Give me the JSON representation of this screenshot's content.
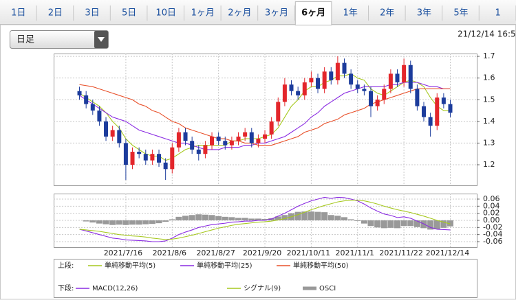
{
  "tabs": [
    {
      "label": "1日"
    },
    {
      "label": "2日"
    },
    {
      "label": "3日"
    },
    {
      "label": "5日"
    },
    {
      "label": "10日"
    },
    {
      "label": "1ヶ月"
    },
    {
      "label": "2ヶ月"
    },
    {
      "label": "3ヶ月"
    },
    {
      "label": "6ヶ月",
      "active": true
    },
    {
      "label": "1年"
    },
    {
      "label": "2年"
    },
    {
      "label": "3年"
    },
    {
      "label": "5年"
    },
    {
      "label": "1"
    }
  ],
  "dropdown": "日足",
  "timestamp": "21/12/14 16:5",
  "chart_data": [
    {
      "type": "candlestick",
      "legend_label": "上段:",
      "up_color": "#e3262b",
      "down_color": "#1c3c9c",
      "grid": true,
      "xlim": [
        -3.9,
        60
      ],
      "xticks": [
        7,
        14,
        21,
        28,
        35,
        42,
        49,
        56
      ],
      "ylim": [
        1.105,
        1.713
      ],
      "yticks": [
        1.2,
        1.3,
        1.4,
        1.5,
        1.6,
        1.7
      ],
      "open": [
        1.54,
        1.52,
        1.48,
        1.45,
        1.4,
        1.33,
        1.36,
        1.3,
        1.2,
        1.26,
        1.25,
        1.22,
        1.25,
        1.21,
        1.18,
        1.28,
        1.35,
        1.31,
        1.27,
        1.25,
        1.29,
        1.33,
        1.31,
        1.29,
        1.31,
        1.33,
        1.35,
        1.3,
        1.32,
        1.34,
        1.4,
        1.49,
        1.57,
        1.54,
        1.52,
        1.58,
        1.6,
        1.55,
        1.63,
        1.59,
        1.67,
        1.62,
        1.57,
        1.55,
        1.54,
        1.47,
        1.5,
        1.55,
        1.62,
        1.58,
        1.66,
        1.55,
        1.47,
        1.42,
        1.38,
        1.51,
        1.48
      ],
      "high": [
        1.56,
        1.54,
        1.5,
        1.47,
        1.42,
        1.38,
        1.38,
        1.32,
        1.28,
        1.28,
        1.27,
        1.27,
        1.27,
        1.23,
        1.3,
        1.37,
        1.37,
        1.33,
        1.29,
        1.31,
        1.35,
        1.35,
        1.33,
        1.33,
        1.35,
        1.37,
        1.37,
        1.34,
        1.36,
        1.42,
        1.51,
        1.6,
        1.59,
        1.56,
        1.6,
        1.63,
        1.62,
        1.65,
        1.65,
        1.7,
        1.69,
        1.64,
        1.59,
        1.57,
        1.56,
        1.52,
        1.57,
        1.64,
        1.64,
        1.69,
        1.68,
        1.57,
        1.49,
        1.44,
        1.53,
        1.53,
        1.5
      ],
      "low": [
        1.5,
        1.46,
        1.43,
        1.38,
        1.31,
        1.31,
        1.28,
        1.13,
        1.18,
        1.23,
        1.2,
        1.2,
        1.19,
        1.13,
        1.16,
        1.26,
        1.29,
        1.25,
        1.22,
        1.23,
        1.27,
        1.29,
        1.27,
        1.27,
        1.29,
        1.31,
        1.28,
        1.28,
        1.3,
        1.32,
        1.38,
        1.47,
        1.52,
        1.5,
        1.5,
        1.56,
        1.53,
        1.53,
        1.57,
        1.57,
        1.6,
        1.55,
        1.53,
        1.52,
        1.42,
        1.45,
        1.48,
        1.53,
        1.56,
        1.56,
        1.53,
        1.45,
        1.4,
        1.33,
        1.36,
        1.46,
        1.42
      ],
      "close": [
        1.52,
        1.48,
        1.45,
        1.4,
        1.33,
        1.36,
        1.3,
        1.2,
        1.26,
        1.25,
        1.22,
        1.25,
        1.21,
        1.18,
        1.28,
        1.35,
        1.31,
        1.27,
        1.25,
        1.29,
        1.33,
        1.31,
        1.29,
        1.31,
        1.33,
        1.35,
        1.3,
        1.32,
        1.34,
        1.4,
        1.49,
        1.57,
        1.54,
        1.52,
        1.58,
        1.6,
        1.55,
        1.63,
        1.59,
        1.67,
        1.62,
        1.57,
        1.55,
        1.54,
        1.47,
        1.5,
        1.55,
        1.62,
        1.58,
        1.66,
        1.55,
        1.47,
        1.42,
        1.38,
        1.51,
        1.48,
        1.44
      ],
      "series": [
        {
          "name": "単純移動平均(5)",
          "color": "#a6c81e",
          "values": [
            1.53,
            1.51,
            1.49,
            1.47,
            1.44,
            1.4,
            1.37,
            1.32,
            1.29,
            1.27,
            1.25,
            1.24,
            1.24,
            1.22,
            1.23,
            1.25,
            1.27,
            1.28,
            1.29,
            1.29,
            1.29,
            1.29,
            1.29,
            1.31,
            1.31,
            1.32,
            1.32,
            1.32,
            1.33,
            1.34,
            1.37,
            1.42,
            1.47,
            1.5,
            1.54,
            1.56,
            1.56,
            1.58,
            1.59,
            1.61,
            1.61,
            1.62,
            1.6,
            1.59,
            1.55,
            1.53,
            1.52,
            1.54,
            1.56,
            1.58,
            1.59,
            1.58,
            1.56,
            1.51,
            1.47,
            1.45,
            1.45
          ]
        },
        {
          "name": "単純移動平均(25)",
          "color": "#8a2be2",
          "values": [
            1.52,
            1.5,
            1.48,
            1.46,
            1.44,
            1.42,
            1.41,
            1.4,
            1.38,
            1.36,
            1.35,
            1.34,
            1.33,
            1.32,
            1.31,
            1.3,
            1.3,
            1.29,
            1.28,
            1.27,
            1.27,
            1.27,
            1.28,
            1.28,
            1.28,
            1.29,
            1.29,
            1.3,
            1.3,
            1.31,
            1.32,
            1.33,
            1.35,
            1.37,
            1.39,
            1.42,
            1.44,
            1.47,
            1.49,
            1.51,
            1.53,
            1.54,
            1.55,
            1.56,
            1.56,
            1.56,
            1.56,
            1.57,
            1.57,
            1.58,
            1.58,
            1.58,
            1.57,
            1.56,
            1.56,
            1.55,
            1.55
          ]
        },
        {
          "name": "単純移動平均(50)",
          "color": "#e8502a",
          "values": [
            1.57,
            1.565,
            1.56,
            1.55,
            1.54,
            1.53,
            1.52,
            1.51,
            1.5,
            1.48,
            1.47,
            1.45,
            1.44,
            1.42,
            1.4,
            1.39,
            1.37,
            1.36,
            1.35,
            1.34,
            1.33,
            1.32,
            1.32,
            1.31,
            1.31,
            1.3,
            1.3,
            1.29,
            1.29,
            1.29,
            1.3,
            1.31,
            1.32,
            1.33,
            1.35,
            1.36,
            1.37,
            1.39,
            1.4,
            1.41,
            1.43,
            1.44,
            1.45,
            1.46,
            1.48,
            1.49,
            1.5,
            1.51,
            1.52,
            1.53,
            1.54,
            1.55,
            1.55,
            1.55,
            1.55,
            1.55,
            1.55
          ]
        }
      ]
    },
    {
      "type": "macd",
      "legend_label": "下段:",
      "grid": true,
      "xlim": [
        -3.9,
        60
      ],
      "xticks": [
        {
          "value": 7,
          "label": "2021/7/16"
        },
        {
          "value": 14,
          "label": "2021/8/6"
        },
        {
          "value": 21,
          "label": "2021/8/27"
        },
        {
          "value": 28,
          "label": "2021/9/20"
        },
        {
          "value": 35,
          "label": "2021/10/11"
        },
        {
          "value": 42,
          "label": "2021/11/1"
        },
        {
          "value": 49,
          "label": "2021/11/22"
        },
        {
          "value": 56,
          "label": "2021/12/14"
        }
      ],
      "ylim": [
        -0.0755,
        0.0755
      ],
      "yticks": [
        0.06,
        0.04,
        0.02,
        {
          "value": 0,
          "label": "0.00"
        },
        -0.02,
        -0.04,
        -0.06
      ],
      "series": [
        {
          "name": "MACD(12,26)",
          "color": "#8a2be2",
          "kind": "line",
          "values": [
            -0.025,
            -0.03,
            -0.035,
            -0.04,
            -0.045,
            -0.05,
            -0.052,
            -0.055,
            -0.056,
            -0.057,
            -0.058,
            -0.06,
            -0.06,
            -0.058,
            -0.05,
            -0.04,
            -0.033,
            -0.027,
            -0.02,
            -0.016,
            -0.012,
            -0.01,
            -0.008,
            -0.005,
            -0.004,
            -0.002,
            -0.002,
            0.0,
            0.0,
            0.004,
            0.012,
            0.02,
            0.03,
            0.04,
            0.048,
            0.055,
            0.06,
            0.065,
            0.062,
            0.065,
            0.064,
            0.06,
            0.055,
            0.046,
            0.035,
            0.026,
            0.018,
            0.014,
            0.008,
            0.01,
            0.006,
            -0.002,
            -0.01,
            -0.02,
            -0.025,
            -0.026,
            -0.027
          ]
        },
        {
          "name": "シグナル(9)",
          "color": "#a6c81e",
          "kind": "line",
          "values": [
            -0.025,
            -0.027,
            -0.029,
            -0.031,
            -0.034,
            -0.037,
            -0.04,
            -0.042,
            -0.044,
            -0.045,
            -0.047,
            -0.05,
            -0.052,
            -0.054,
            -0.053,
            -0.05,
            -0.046,
            -0.042,
            -0.037,
            -0.032,
            -0.027,
            -0.022,
            -0.018,
            -0.014,
            -0.011,
            -0.009,
            -0.007,
            -0.005,
            -0.004,
            -0.002,
            0.001,
            0.005,
            0.01,
            0.016,
            0.023,
            0.03,
            0.036,
            0.042,
            0.047,
            0.052,
            0.055,
            0.057,
            0.057,
            0.055,
            0.051,
            0.046,
            0.04,
            0.035,
            0.03,
            0.026,
            0.022,
            0.017,
            0.012,
            0.006,
            0.0,
            -0.005,
            -0.01
          ]
        },
        {
          "name": "OSCI",
          "color": "#999999",
          "kind": "bar",
          "values": [
            0,
            -0.003,
            -0.006,
            -0.009,
            -0.011,
            -0.013,
            -0.012,
            -0.013,
            -0.012,
            -0.012,
            -0.011,
            -0.01,
            -0.008,
            -0.004,
            0.003,
            0.01,
            0.013,
            0.015,
            0.017,
            0.016,
            0.015,
            0.012,
            0.01,
            0.009,
            0.007,
            0.007,
            0.005,
            0.005,
            0.004,
            0.006,
            0.011,
            0.015,
            0.02,
            0.024,
            0.025,
            0.025,
            0.024,
            0.023,
            0.015,
            0.013,
            0.009,
            0.003,
            -0.002,
            -0.009,
            -0.016,
            -0.02,
            -0.022,
            -0.021,
            -0.022,
            -0.016,
            -0.016,
            -0.019,
            -0.022,
            -0.026,
            -0.025,
            -0.021,
            -0.017
          ]
        }
      ]
    }
  ]
}
